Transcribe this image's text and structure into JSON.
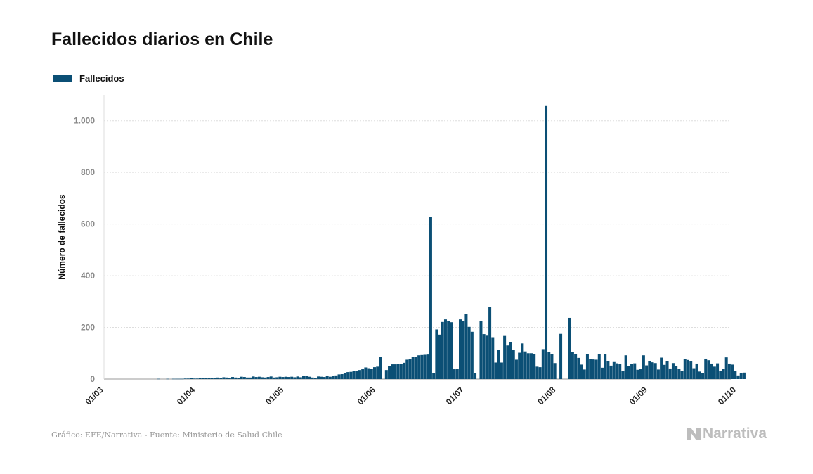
{
  "title": "Fallecidos diarios en Chile",
  "legend": {
    "label": "Fallecidos",
    "color": "#0b4f75"
  },
  "source": "Gráfico: EFE/Narrativa - Fuente: Ministerio de Salud Chile",
  "brand": "Narrativa",
  "chart_data": {
    "type": "bar",
    "title": "Fallecidos diarios en Chile",
    "ylabel": "Número de fallecidos",
    "xlabel": "",
    "ylim": [
      0,
      1100
    ],
    "yticks": [
      0,
      200,
      400,
      600,
      800,
      1000
    ],
    "ytick_labels": [
      "0",
      "200",
      "400",
      "600",
      "800",
      "1.000"
    ],
    "x_start": "2020-03-03",
    "x_end": "2020-10-01",
    "xtick_labels": [
      "01/03",
      "01/04",
      "01/05",
      "01/06",
      "01/07",
      "01/08",
      "01/09",
      "01/10"
    ],
    "grid": true,
    "legend_position": "top-left",
    "series": [
      {
        "name": "Fallecidos",
        "color": "#0b4f75",
        "values": [
          0,
          0,
          0,
          0,
          0,
          0,
          0,
          0,
          0,
          0,
          0,
          0,
          0,
          0,
          0,
          0,
          0,
          0,
          1,
          0,
          0,
          1,
          0,
          1,
          1,
          1,
          1,
          2,
          2,
          3,
          2,
          2,
          4,
          3,
          5,
          4,
          5,
          4,
          6,
          5,
          7,
          6,
          5,
          8,
          6,
          5,
          9,
          8,
          6,
          6,
          10,
          8,
          9,
          7,
          6,
          8,
          10,
          6,
          7,
          9,
          8,
          9,
          8,
          9,
          7,
          10,
          7,
          12,
          11,
          9,
          6,
          5,
          10,
          9,
          8,
          11,
          9,
          12,
          14,
          18,
          19,
          22,
          27,
          28,
          30,
          32,
          35,
          38,
          45,
          42,
          40,
          46,
          48,
          87,
          0,
          35,
          49,
          57,
          57,
          58,
          59,
          63,
          75,
          79,
          85,
          87,
          92,
          93,
          94,
          95,
          627,
          23,
          192,
          172,
          221,
          231,
          226,
          220,
          38,
          40,
          231,
          224,
          252,
          202,
          183,
          24,
          0,
          224,
          174,
          168,
          279,
          162,
          64,
          112,
          64,
          167,
          130,
          142,
          113,
          75,
          102,
          138,
          107,
          100,
          100,
          98,
          48,
          46,
          116,
          1057,
          106,
          98,
          62,
          0,
          175,
          0,
          0,
          237,
          106,
          96,
          82,
          56,
          37,
          98,
          78,
          76,
          75,
          98,
          44,
          97,
          69,
          52,
          66,
          61,
          58,
          31,
          92,
          50,
          58,
          61,
          36,
          38,
          92,
          53,
          70,
          65,
          62,
          37,
          83,
          55,
          70,
          41,
          62,
          49,
          40,
          31,
          77,
          74,
          68,
          42,
          60,
          29,
          22,
          79,
          73,
          60,
          48,
          61,
          30,
          40,
          84,
          60,
          56,
          32,
          14,
          22,
          25
        ]
      }
    ]
  }
}
